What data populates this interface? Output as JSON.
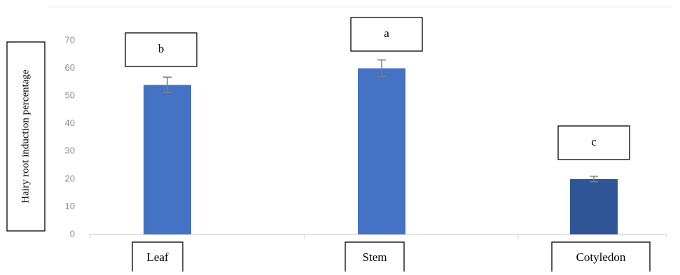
{
  "chart_data": {
    "type": "bar",
    "title": "",
    "xlabel": "",
    "ylabel": "Hairy root induction percentage",
    "ylim": [
      0,
      70
    ],
    "yticks": [
      0,
      10,
      20,
      30,
      40,
      50,
      60,
      70
    ],
    "grid": false,
    "categories": [
      "Leaf",
      "Stem",
      "Cotyledon"
    ],
    "values": [
      54,
      60,
      20
    ],
    "error": [
      2.8,
      3.0,
      1.0
    ],
    "significance_letters": [
      "b",
      "a",
      "c"
    ],
    "bar_colors": [
      "#4472c4",
      "#4472c4",
      "#2f5597"
    ],
    "error_bar_color": "#7f7f7f",
    "axis_color": "#d9d9d9"
  }
}
